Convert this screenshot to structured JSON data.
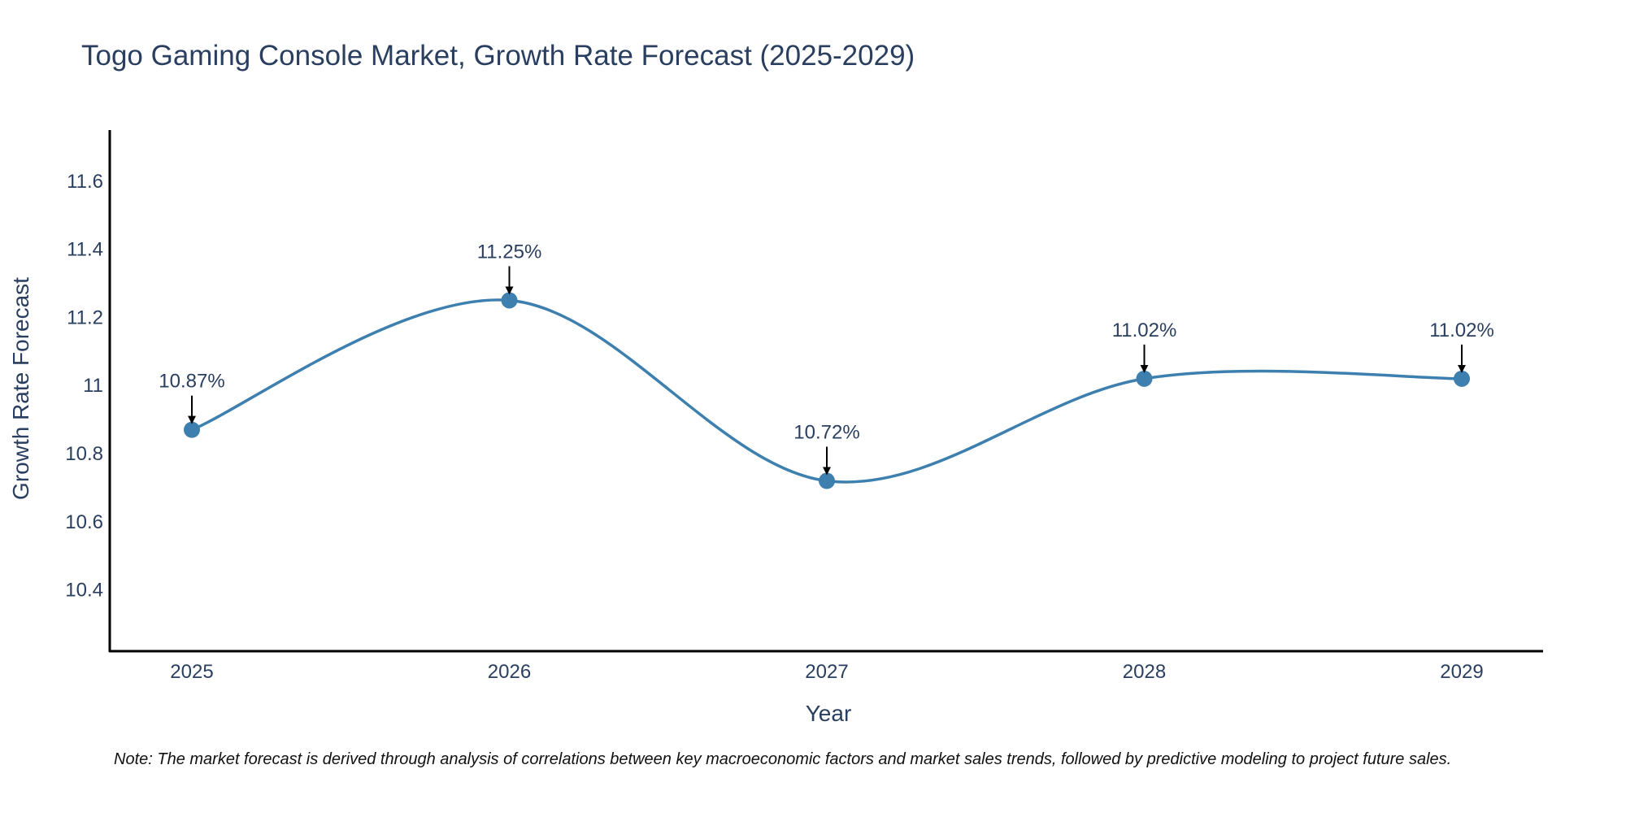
{
  "colors": {
    "line": "#3d7fae",
    "marker": "#3d7fae",
    "axis": "#000000",
    "text": "#2a3f5f",
    "arrow": "#000000",
    "background": "#ffffff"
  },
  "chart_data": {
    "type": "line",
    "title": "Togo Gaming Console Market, Growth Rate Forecast (2025-2029)",
    "xlabel": "Year",
    "ylabel": "Growth Rate Forecast",
    "categories": [
      "2025",
      "2026",
      "2027",
      "2028",
      "2029"
    ],
    "series": [
      {
        "name": "Growth Rate Forecast",
        "values": [
          10.87,
          11.25,
          10.72,
          11.02,
          11.02
        ],
        "labels": [
          "10.87%",
          "11.25%",
          "10.72%",
          "11.02%",
          "11.02%"
        ]
      }
    ],
    "yticks": [
      10.4,
      10.6,
      10.8,
      11,
      11.2,
      11.4,
      11.6
    ],
    "ytick_labels": [
      "10.4",
      "10.6",
      "10.8",
      "11",
      "11.2",
      "11.4",
      "11.6"
    ],
    "ylim": [
      10.22,
      11.75
    ],
    "line_shape": "spline",
    "grid": false,
    "legend": "none"
  },
  "note": "Note: The market forecast is derived through analysis of correlations between key macroeconomic factors and market sales trends, followed by predictive modeling to project future sales."
}
